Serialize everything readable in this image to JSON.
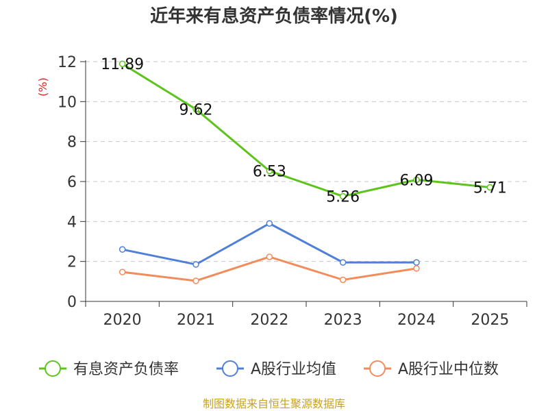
{
  "chart_data": {
    "type": "line",
    "title": "近年来有息资产负债率情况(%)",
    "ylabel": "(%)",
    "categories": [
      "2020",
      "2021",
      "2022",
      "2023",
      "2024",
      "2025"
    ],
    "yticks": [
      "0",
      "2",
      "4",
      "6",
      "8",
      "10",
      "12"
    ],
    "ylim": [
      0,
      12
    ],
    "grid": true,
    "legend_position": "bottom",
    "series": [
      {
        "name": "有息资产负债率",
        "color": "#5cc41a",
        "values": [
          11.89,
          9.62,
          6.53,
          5.26,
          6.09,
          5.71
        ],
        "labels": [
          "11.89",
          "9.62",
          "6.53",
          "5.26",
          "6.09",
          "5.71"
        ]
      },
      {
        "name": "A股行业均值",
        "color": "#4f7fd9",
        "values": [
          2.6,
          1.85,
          3.9,
          1.95,
          1.95,
          null
        ]
      },
      {
        "name": "A股行业中位数",
        "color": "#f28c5a",
        "values": [
          1.47,
          1.03,
          2.23,
          1.08,
          1.65,
          null
        ]
      }
    ]
  },
  "source": "制图数据来自恒生聚源数据库"
}
